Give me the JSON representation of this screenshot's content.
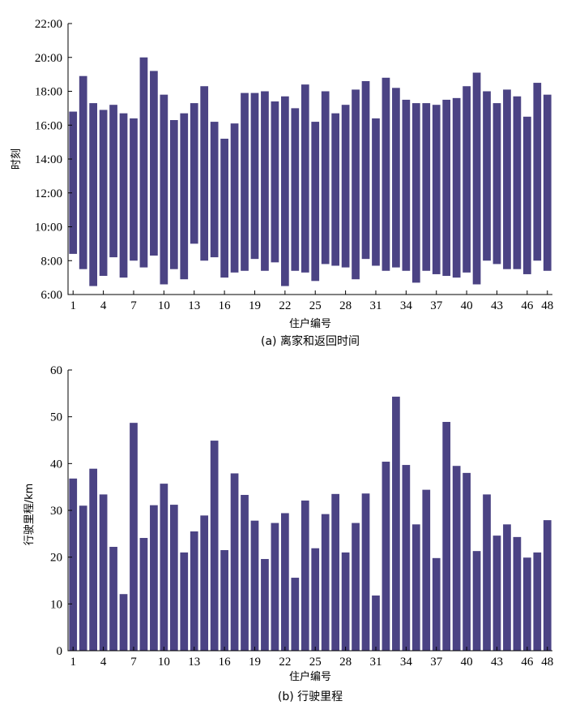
{
  "chart_data": [
    {
      "type": "floating-bar",
      "caption": "(a) 离家和返回时间",
      "xlabel": "住户编号",
      "ylabel": "时刻",
      "bar_color": "#4b4384",
      "ylim": [
        6,
        22
      ],
      "yticks": [
        "6:00",
        "8:00",
        "10:00",
        "12:00",
        "14:00",
        "16:00",
        "18:00",
        "20:00",
        "22:00"
      ],
      "xticks": [
        "1",
        "4",
        "7",
        "10",
        "13",
        "16",
        "19",
        "22",
        "25",
        "28",
        "31",
        "34",
        "37",
        "40",
        "43",
        "46",
        "48"
      ],
      "households": [
        1,
        2,
        3,
        4,
        5,
        6,
        7,
        8,
        9,
        10,
        11,
        12,
        13,
        14,
        15,
        16,
        17,
        18,
        19,
        20,
        21,
        22,
        23,
        24,
        25,
        26,
        27,
        28,
        29,
        30,
        31,
        32,
        33,
        34,
        35,
        36,
        37,
        38,
        39,
        40,
        41,
        42,
        43,
        44,
        45,
        46,
        47,
        48
      ],
      "leave": [
        8.4,
        7.5,
        6.5,
        7.1,
        8.2,
        7.0,
        8.0,
        7.6,
        8.3,
        6.6,
        7.5,
        6.9,
        9.0,
        8.0,
        8.2,
        7.0,
        7.3,
        7.4,
        8.1,
        7.4,
        7.9,
        6.5,
        7.4,
        7.3,
        6.8,
        7.8,
        7.7,
        7.6,
        6.9,
        8.1,
        7.7,
        7.4,
        7.6,
        7.4,
        6.7,
        7.4,
        7.2,
        7.1,
        7.0,
        7.3,
        6.6,
        8.0,
        7.8,
        7.5,
        7.5,
        7.2,
        8.0,
        7.4
      ],
      "return": [
        16.8,
        18.9,
        17.3,
        16.9,
        17.2,
        16.7,
        16.4,
        20.0,
        19.2,
        17.8,
        16.3,
        16.7,
        17.3,
        18.3,
        16.2,
        15.2,
        16.1,
        17.9,
        17.9,
        18.0,
        17.4,
        17.7,
        17.0,
        18.4,
        16.2,
        18.0,
        16.7,
        17.2,
        18.1,
        18.6,
        16.4,
        18.8,
        18.2,
        17.5,
        17.3,
        17.3,
        17.2,
        17.5,
        17.6,
        18.3,
        19.1,
        18.0,
        17.3,
        18.1,
        17.7,
        16.5,
        18.5,
        17.8
      ]
    },
    {
      "type": "bar",
      "caption": "(b) 行驶里程",
      "xlabel": "住户编号",
      "ylabel": "行驶里程/km",
      "bar_color": "#4b4384",
      "ylim": [
        0,
        60
      ],
      "yticks": [
        "0",
        "10",
        "20",
        "30",
        "40",
        "50",
        "60"
      ],
      "xticks": [
        "1",
        "4",
        "7",
        "10",
        "13",
        "16",
        "19",
        "22",
        "25",
        "28",
        "31",
        "34",
        "37",
        "40",
        "43",
        "46",
        "48"
      ],
      "households": [
        1,
        2,
        3,
        4,
        5,
        6,
        7,
        8,
        9,
        10,
        11,
        12,
        13,
        14,
        15,
        16,
        17,
        18,
        19,
        20,
        21,
        22,
        23,
        24,
        25,
        26,
        27,
        28,
        29,
        30,
        31,
        32,
        33,
        34,
        35,
        36,
        37,
        38,
        39,
        40,
        41,
        42,
        43,
        44,
        45,
        46,
        47,
        48
      ],
      "values": [
        36.8,
        31.0,
        38.9,
        33.4,
        22.2,
        12.1,
        48.7,
        24.1,
        31.1,
        35.7,
        31.2,
        21.0,
        25.5,
        28.9,
        44.9,
        21.5,
        37.9,
        33.3,
        27.8,
        19.6,
        27.3,
        29.4,
        15.6,
        32.1,
        21.9,
        29.2,
        33.5,
        21.0,
        27.3,
        33.6,
        11.8,
        40.4,
        54.3,
        39.7,
        27.0,
        34.4,
        19.8,
        48.9,
        39.5,
        38.0,
        21.3,
        33.4,
        24.6,
        27.0,
        24.3,
        19.9,
        21.0,
        27.9
      ]
    }
  ]
}
